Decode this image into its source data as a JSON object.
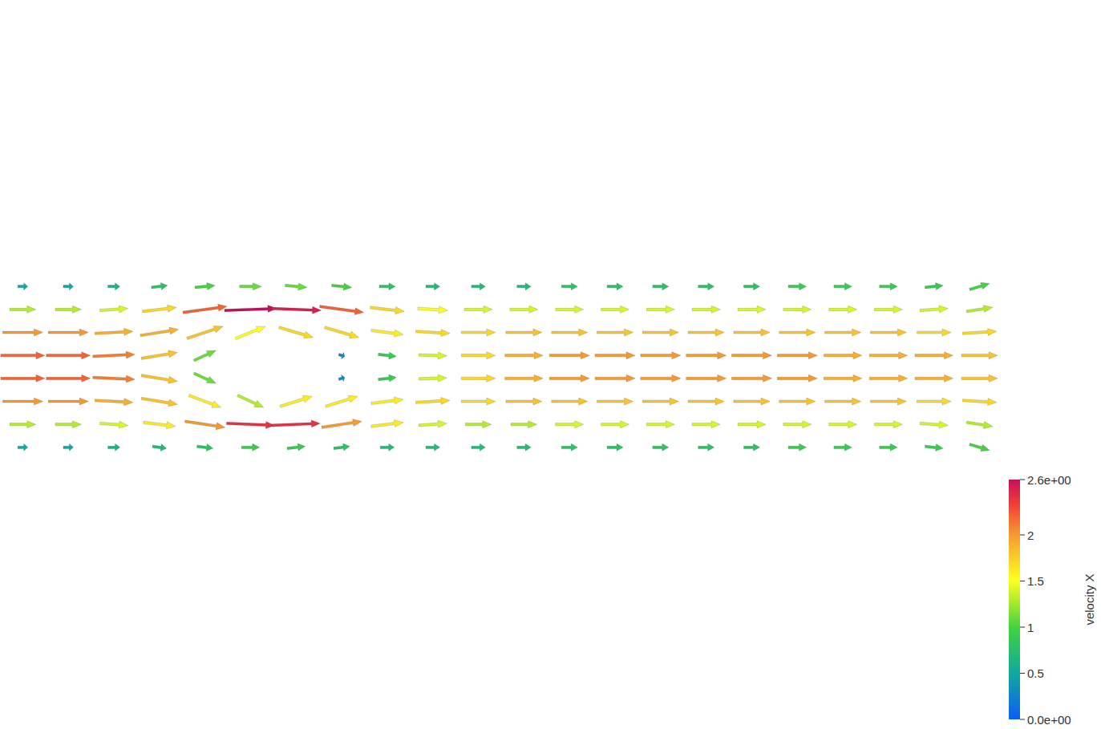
{
  "chart_data": {
    "type": "vector_field",
    "tick_labels": false,
    "grid": false,
    "xlim": [
      0,
      2.2
    ],
    "ylim": [
      0,
      0.41
    ],
    "x": [
      0.05,
      0.15,
      0.25,
      0.35,
      0.45,
      0.55,
      0.65,
      0.75,
      0.85,
      0.95,
      1.05,
      1.15,
      1.25,
      1.35,
      1.45,
      1.55,
      1.65,
      1.75,
      1.85,
      1.95,
      2.05,
      2.15
    ],
    "y": [
      0.03,
      0.08,
      0.13,
      0.18,
      0.23,
      0.28,
      0.33,
      0.38
    ],
    "u": [
      [
        0.5,
        0.5,
        0.6,
        0.7,
        0.8,
        0.9,
        0.9,
        0.8,
        0.7,
        0.7,
        0.7,
        0.7,
        0.8,
        0.8,
        0.8,
        0.8,
        0.8,
        0.9,
        0.9,
        0.9,
        0.9,
        1.0
      ],
      [
        1.3,
        1.3,
        1.4,
        1.6,
        2.0,
        2.4,
        2.4,
        2.0,
        1.6,
        1.4,
        1.3,
        1.3,
        1.4,
        1.4,
        1.4,
        1.4,
        1.4,
        1.4,
        1.4,
        1.4,
        1.4,
        1.3
      ],
      [
        2.0,
        2.0,
        1.9,
        1.8,
        1.6,
        1.3,
        1.6,
        1.6,
        1.6,
        1.7,
        1.7,
        1.8,
        1.8,
        1.8,
        1.8,
        1.8,
        1.8,
        1.8,
        1.8,
        1.8,
        1.7,
        1.7
      ],
      [
        2.2,
        2.2,
        2.1,
        1.8,
        1.1,
        null,
        null,
        0.3,
        0.9,
        1.4,
        1.7,
        1.9,
        2.0,
        2.0,
        2.0,
        2.0,
        2.0,
        2.0,
        1.9,
        1.9,
        1.9,
        1.8
      ],
      [
        2.2,
        2.2,
        2.1,
        1.8,
        1.1,
        null,
        null,
        0.3,
        0.9,
        1.4,
        1.7,
        1.9,
        2.0,
        2.0,
        2.0,
        2.0,
        2.0,
        2.0,
        1.9,
        1.9,
        1.9,
        1.8
      ],
      [
        2.0,
        2.0,
        1.9,
        1.9,
        1.8,
        1.5,
        1.7,
        1.7,
        1.6,
        1.7,
        1.7,
        1.8,
        1.8,
        1.8,
        1.8,
        1.8,
        1.8,
        1.8,
        1.8,
        1.8,
        1.7,
        1.7
      ],
      [
        1.3,
        1.3,
        1.4,
        1.7,
        2.2,
        2.6,
        2.5,
        2.2,
        1.7,
        1.5,
        1.4,
        1.4,
        1.4,
        1.4,
        1.4,
        1.4,
        1.4,
        1.4,
        1.4,
        1.4,
        1.4,
        1.3
      ],
      [
        0.5,
        0.5,
        0.6,
        0.8,
        1.0,
        1.1,
        1.1,
        1.0,
        0.8,
        0.7,
        0.7,
        0.7,
        0.8,
        0.8,
        0.8,
        0.8,
        0.8,
        0.9,
        0.9,
        0.9,
        0.9,
        1.0
      ]
    ],
    "v": [
      [
        0,
        0,
        0,
        -0.1,
        -0.1,
        0,
        0.1,
        0.1,
        0,
        0,
        0,
        0,
        0,
        0,
        0,
        0,
        0,
        0,
        0,
        0,
        -0.1,
        -0.3
      ],
      [
        0,
        0,
        -0.1,
        -0.2,
        -0.3,
        -0.1,
        0.1,
        0.3,
        0.2,
        0.1,
        0,
        0,
        0,
        0,
        0,
        0,
        0,
        0,
        0,
        0,
        -0.1,
        -0.2
      ],
      [
        0,
        0,
        -0.1,
        -0.3,
        -0.6,
        -0.6,
        0.5,
        0.5,
        0.2,
        0.1,
        0,
        0,
        0,
        0,
        0,
        0,
        0,
        0,
        0,
        0,
        0,
        -0.1
      ],
      [
        0,
        0,
        -0.1,
        -0.3,
        -0.5,
        null,
        null,
        0.1,
        0.1,
        0.05,
        0,
        0,
        0,
        0,
        0,
        0,
        0,
        0,
        0,
        0,
        0,
        0
      ],
      [
        0,
        0,
        0.1,
        0.3,
        0.5,
        null,
        null,
        -0.1,
        -0.1,
        -0.05,
        0,
        0,
        0,
        0,
        0,
        0,
        0,
        0,
        0,
        0,
        0,
        0
      ],
      [
        0,
        0,
        0.1,
        0.3,
        0.6,
        0.6,
        -0.5,
        -0.5,
        -0.2,
        -0.1,
        0,
        0,
        0,
        0,
        0,
        0,
        0,
        0,
        0,
        0,
        0,
        0.1
      ],
      [
        0,
        0,
        0.1,
        0.2,
        0.3,
        0.1,
        -0.1,
        -0.3,
        -0.2,
        -0.1,
        0,
        0,
        0,
        0,
        0,
        0,
        0,
        0,
        0,
        0,
        0.1,
        0.2
      ],
      [
        0,
        0,
        0,
        0.1,
        0.1,
        0,
        -0.1,
        -0.1,
        0,
        0,
        0,
        0,
        0,
        0,
        0,
        0,
        0,
        0,
        0,
        0,
        0.1,
        0.3
      ]
    ],
    "colorbar": {
      "label": "velocity X",
      "range": [
        0,
        2.6
      ],
      "ticks": [
        {
          "value": 2.6,
          "label": "2.6e+00"
        },
        2,
        1.5,
        1,
        0.5,
        {
          "value": 0,
          "label": "0.0e+00"
        }
      ]
    }
  }
}
